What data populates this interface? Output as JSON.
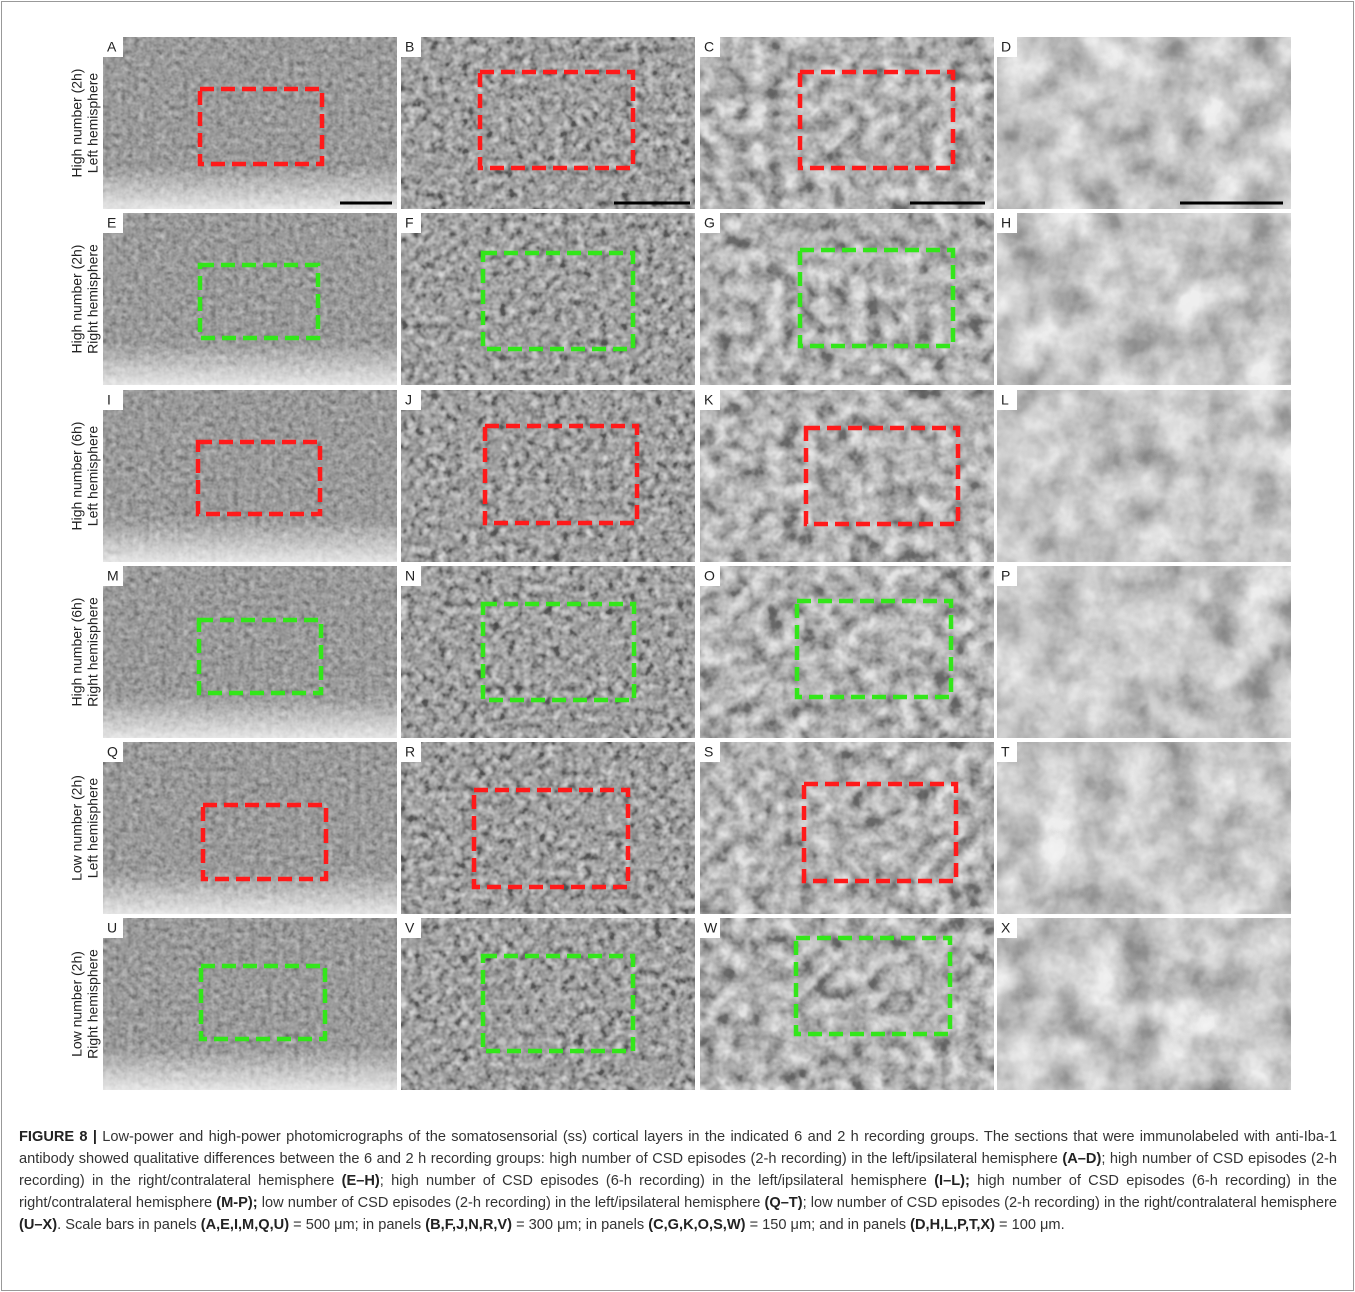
{
  "rows": [
    {
      "label_lines": [
        "High number (2h)",
        "Left hemisphere"
      ],
      "box_color": "#ff1a1a",
      "panels": [
        "A",
        "B",
        "C",
        "D"
      ]
    },
    {
      "label_lines": [
        "High number (2h)",
        "Right hemisphere"
      ],
      "box_color": "#33e61a",
      "panels": [
        "E",
        "F",
        "G",
        "H"
      ]
    },
    {
      "label_lines": [
        "High number (6h)",
        "Left hemisphere"
      ],
      "box_color": "#ff1a1a",
      "panels": [
        "I",
        "J",
        "K",
        "L"
      ]
    },
    {
      "label_lines": [
        "High number (6h)",
        "Right hemisphere"
      ],
      "box_color": "#33e61a",
      "panels": [
        "M",
        "N",
        "O",
        "P"
      ]
    },
    {
      "label_lines": [
        "Low number (2h)",
        "Left hemisphere"
      ],
      "box_color": "#ff1a1a",
      "panels": [
        "Q",
        "R",
        "S",
        "T"
      ]
    },
    {
      "label_lines": [
        "Low number (2h)",
        "Right hemisphere"
      ],
      "box_color": "#33e61a",
      "panels": [
        "U",
        "V",
        "W",
        "X"
      ]
    }
  ],
  "caption": [
    {
      "text": "FIGURE 8 |",
      "bold": true
    },
    {
      "text": " Low-power and high-power photomicrographs of the somatosensorial (ss) cortical layers in the indicated 6 and 2 h recording groups. The sections that were immunolabeled with anti-Iba-1 antibody showed qualitative differences between the 6 and 2 h recording groups: high number of CSD episodes (2-h recording) in the left/ipsilateral hemisphere ",
      "bold": false
    },
    {
      "text": "(A–D)",
      "bold": true
    },
    {
      "text": "; high number of CSD episodes (2-h recording) in the right/contralateral hemisphere ",
      "bold": false
    },
    {
      "text": "(E–H)",
      "bold": true
    },
    {
      "text": "; high number of CSD episodes (6-h recording) in the left/ipsilateral hemisphere ",
      "bold": false
    },
    {
      "text": "(I–L);",
      "bold": true
    },
    {
      "text": " high number of CSD episodes (6-h recording) in the right/contralateral hemisphere ",
      "bold": false
    },
    {
      "text": "(M-P);",
      "bold": true
    },
    {
      "text": " low number of CSD episodes (2-h recording) in the left/ipsilateral hemisphere ",
      "bold": false
    },
    {
      "text": "(Q–T)",
      "bold": true
    },
    {
      "text": "; low number of CSD episodes (2-h recording) in the right/contralateral hemisphere ",
      "bold": false
    },
    {
      "text": "(U–X)",
      "bold": true
    },
    {
      "text": ". Scale bars in panels ",
      "bold": false
    },
    {
      "text": "(A,E,I,M,Q,U)",
      "bold": true
    },
    {
      "text": " = 500 μm; in panels ",
      "bold": false
    },
    {
      "text": "(B,F,J,N,R,V)",
      "bold": true
    },
    {
      "text": " = 300 μm; in panels ",
      "bold": false
    },
    {
      "text": "(C,G,K,O,S,W)",
      "bold": true
    },
    {
      "text": " = 150 μm; and in panels ",
      "bold": false
    },
    {
      "text": "(D,H,L,P,T,X)",
      "bold": true
    },
    {
      "text": " = 100 μm.",
      "bold": false
    }
  ]
}
